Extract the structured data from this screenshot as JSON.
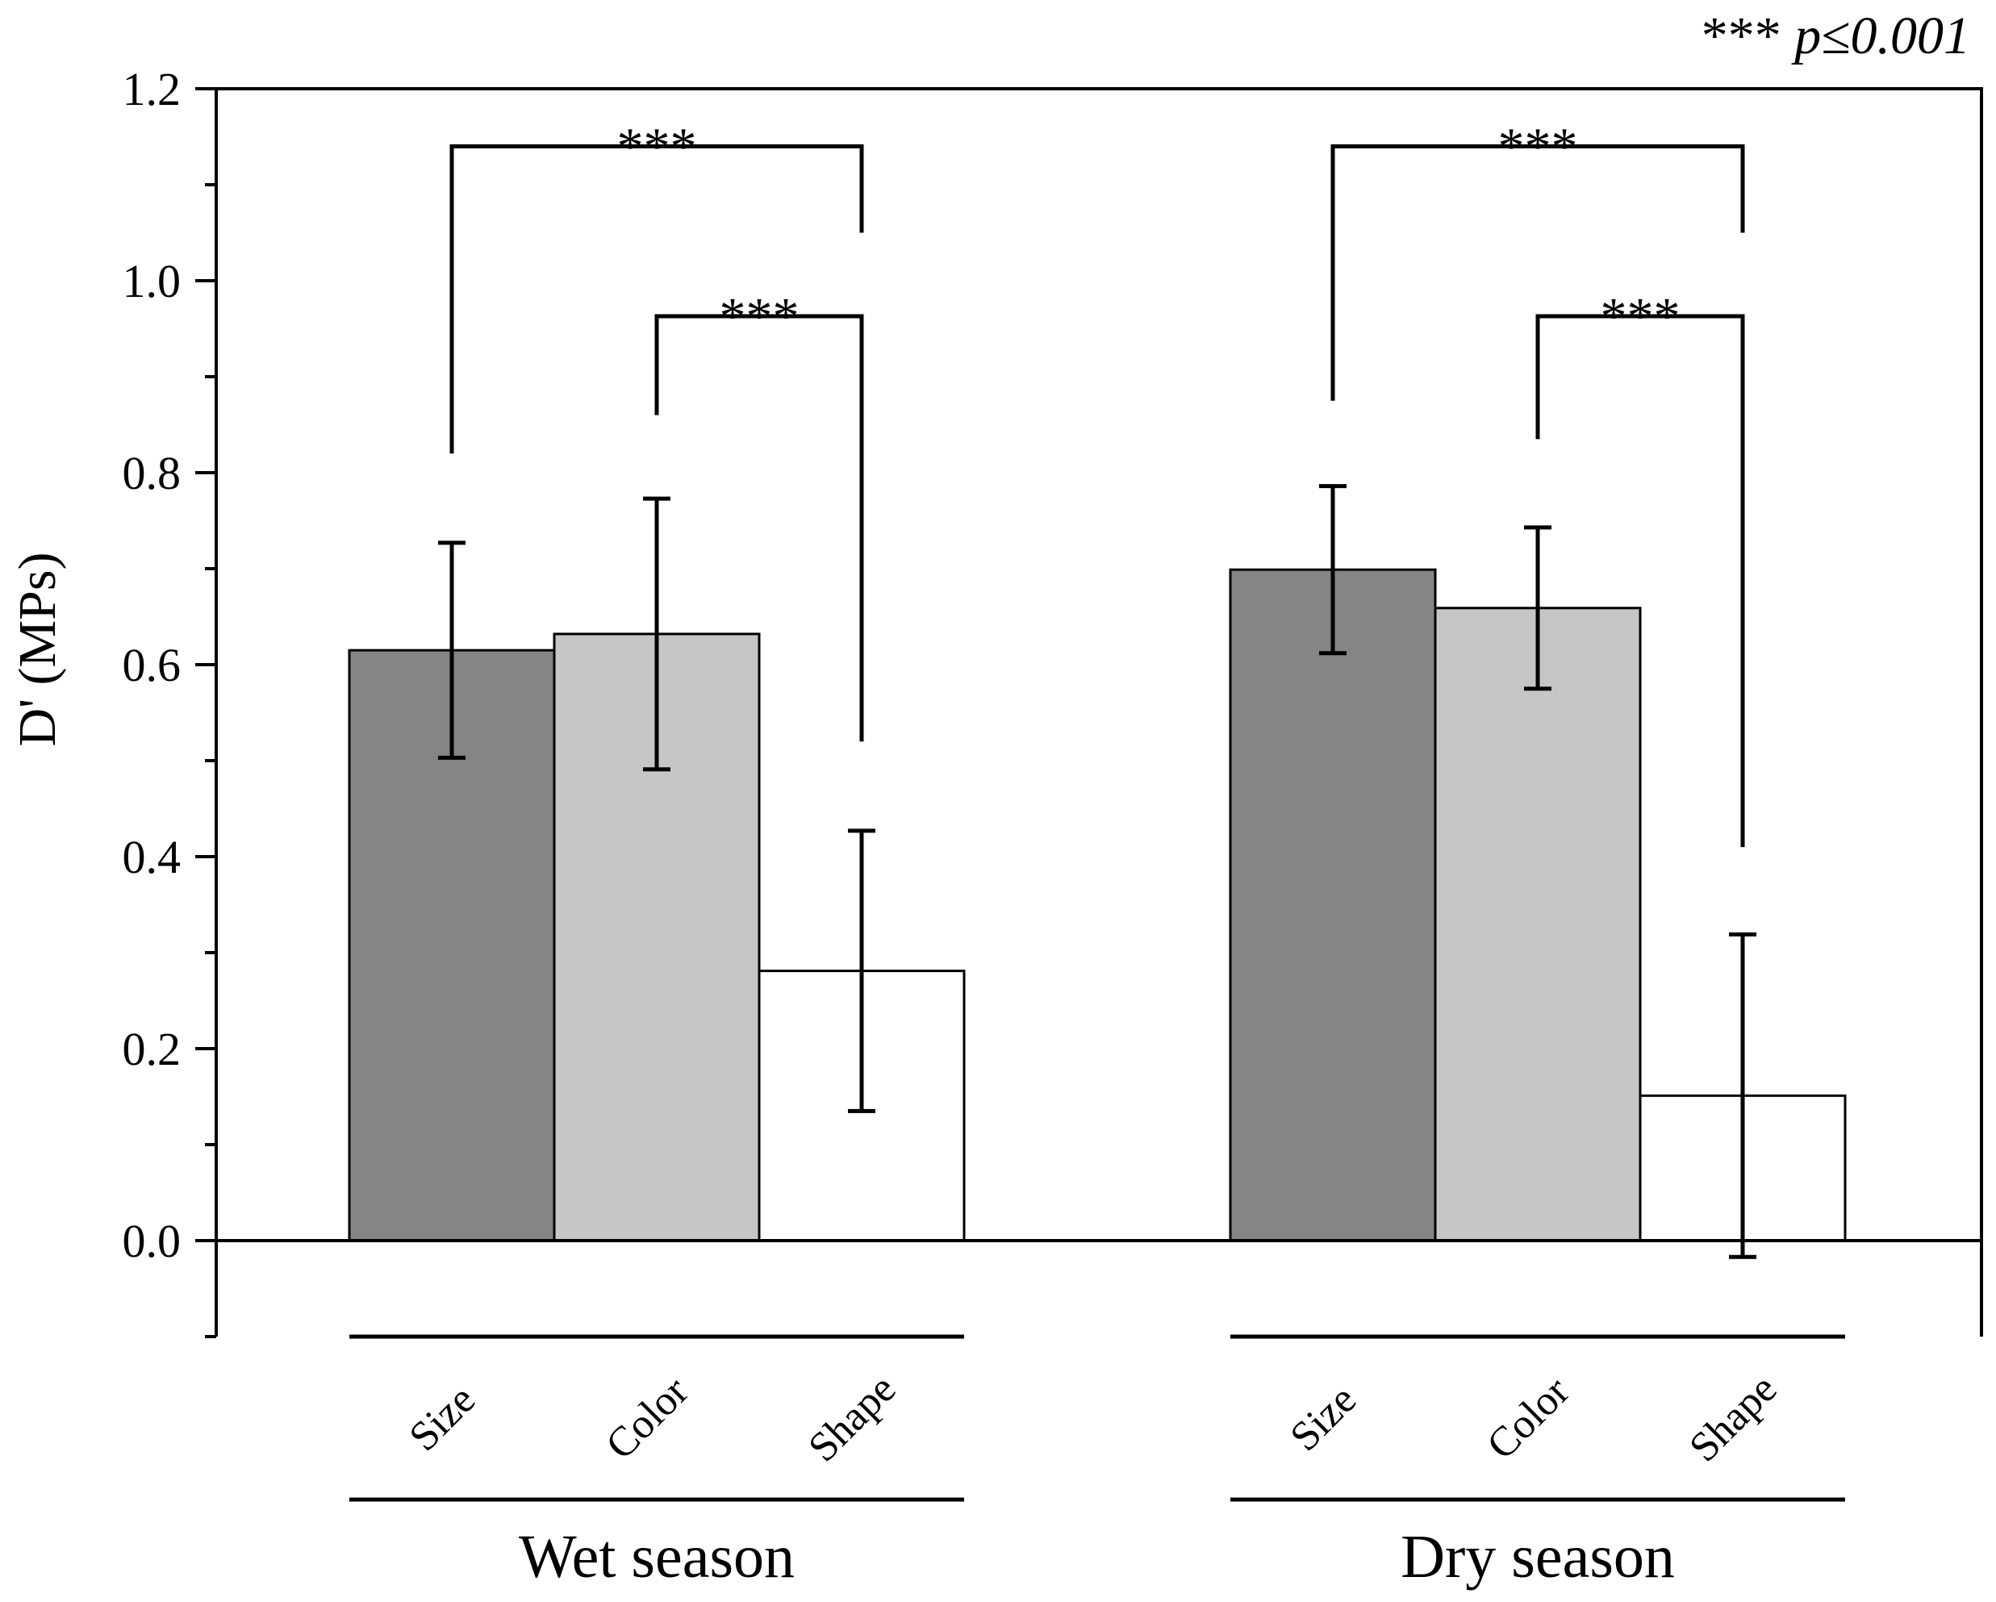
{
  "chart_data": {
    "type": "bar",
    "ylabel": "D' (MPs)",
    "ylim": [
      -0.1,
      1.2
    ],
    "yticks": [
      "0.0",
      "0.2",
      "0.4",
      "0.6",
      "0.8",
      "1.0",
      "1.2"
    ],
    "significance_note": {
      "stars": "***",
      "text": "p≤0.001"
    },
    "categories": [
      "Size",
      "Color",
      "Shape"
    ],
    "colors": {
      "Size": "#858585",
      "Color": "#c6c6c6",
      "Shape": "#ffffff"
    },
    "groups": [
      {
        "name": "Wet season",
        "bars": [
          {
            "category": "Size",
            "value": 0.615,
            "err": 0.112
          },
          {
            "category": "Color",
            "value": 0.632,
            "err": 0.141
          },
          {
            "category": "Shape",
            "value": 0.281,
            "err": 0.146
          }
        ],
        "brackets": [
          {
            "from": "Size",
            "to": "Shape",
            "label": "***"
          },
          {
            "from": "Color",
            "to": "Shape",
            "label": "***"
          }
        ]
      },
      {
        "name": "Dry season",
        "bars": [
          {
            "category": "Size",
            "value": 0.699,
            "err": 0.087
          },
          {
            "category": "Color",
            "value": 0.659,
            "err": 0.084
          },
          {
            "category": "Shape",
            "value": 0.151,
            "err": 0.168
          }
        ],
        "brackets": [
          {
            "from": "Size",
            "to": "Shape",
            "label": "***"
          },
          {
            "from": "Color",
            "to": "Shape",
            "label": "***"
          }
        ]
      }
    ]
  }
}
